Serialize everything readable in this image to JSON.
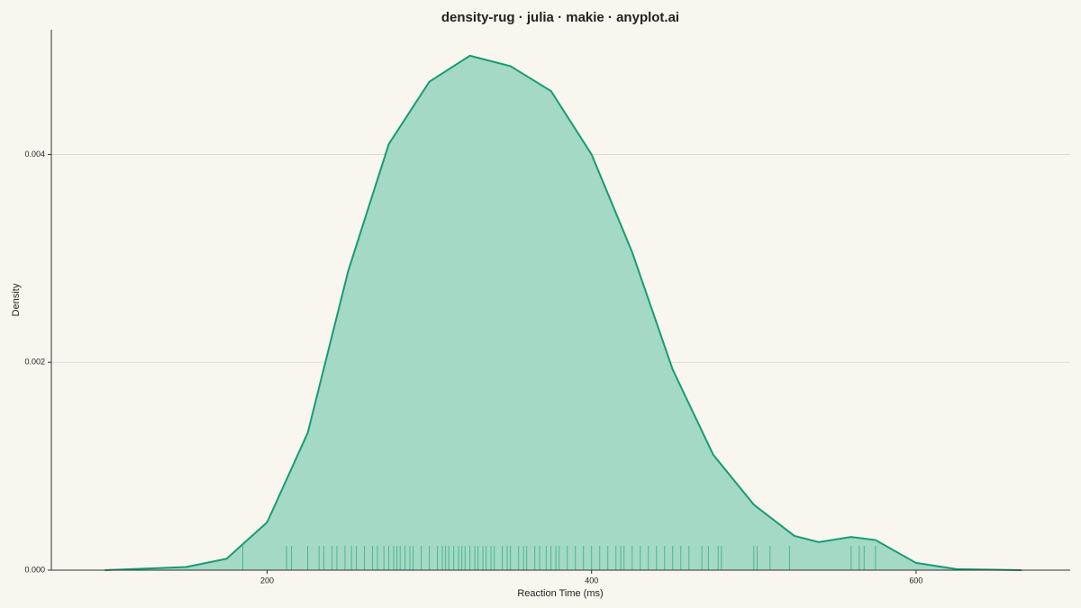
{
  "chart_data": {
    "type": "density-rug",
    "title": "density-rug · julia · makie · anyplot.ai",
    "x_label": "Reaction Time (ms)",
    "y_label": "Density",
    "xlim": [
      67,
      695
    ],
    "ylim": [
      0,
      0.0052
    ],
    "xticks": [
      200,
      400,
      600
    ],
    "yticks": [
      {
        "value": 0,
        "label": "0.000"
      },
      {
        "value": 0.002,
        "label": "0.002"
      },
      {
        "value": 0.004,
        "label": "0.004"
      }
    ],
    "grid": true,
    "color": "#179c72",
    "fill_color": "#a3d9c5",
    "x": [
      100,
      150,
      175,
      200,
      225,
      250,
      275,
      300,
      325,
      350,
      375,
      400,
      425,
      450,
      475,
      500,
      525,
      540,
      560,
      575,
      600,
      625,
      665
    ],
    "values": [
      0,
      3e-05,
      0.00011,
      0.00046,
      0.00132,
      0.00288,
      0.0041,
      0.0047,
      0.00495,
      0.00485,
      0.00461,
      0.004,
      0.00306,
      0.00193,
      0.00111,
      0.00063,
      0.00033,
      0.00027,
      0.00032,
      0.00029,
      7e-05,
      1e-05,
      0
    ],
    "rug": [
      185,
      212,
      215,
      225,
      232,
      235,
      240,
      243,
      248,
      252,
      255,
      260,
      265,
      268,
      272,
      275,
      278,
      280,
      282,
      285,
      288,
      290,
      295,
      300,
      305,
      308,
      310,
      312,
      315,
      318,
      320,
      322,
      325,
      328,
      330,
      333,
      335,
      338,
      340,
      345,
      348,
      350,
      355,
      358,
      360,
      365,
      368,
      372,
      375,
      378,
      380,
      385,
      390,
      395,
      400,
      405,
      410,
      415,
      418,
      420,
      425,
      430,
      435,
      440,
      445,
      450,
      455,
      460,
      468,
      472,
      478,
      480,
      500,
      502,
      510,
      522,
      560,
      565,
      568,
      575
    ]
  }
}
